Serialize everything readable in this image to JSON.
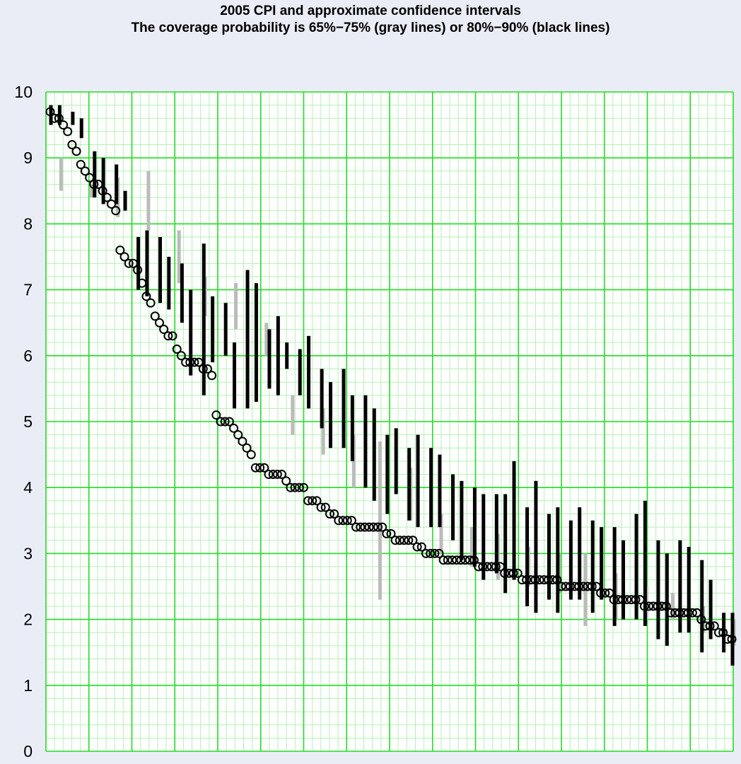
{
  "chart_data": {
    "type": "scatter",
    "title": "2005 CPI and approximate confidence intervals",
    "subtitle": "The coverage probability is 65%−75% (gray lines) or 80%−90% (black lines)",
    "xlabel": "",
    "ylabel": "",
    "ylim": [
      0,
      10
    ],
    "yticks": [
      "0",
      "1",
      "2",
      "3",
      "4",
      "5",
      "6",
      "7",
      "8",
      "9",
      "10"
    ],
    "grid": true,
    "colors": {
      "background": "#ebedf6",
      "plot_background": "#ffffff",
      "major_grid": "#22dd22",
      "minor_grid": "#b5f0b5",
      "point_stroke": "#000000",
      "interval_black": "#000000",
      "interval_gray": "#bbbbbb"
    },
    "points": [
      9.7,
      9.6,
      9.6,
      9.5,
      9.4,
      9.2,
      9.1,
      8.9,
      8.8,
      8.7,
      8.6,
      8.6,
      8.5,
      8.4,
      8.3,
      8.2,
      7.6,
      7.5,
      7.4,
      7.4,
      7.3,
      7.1,
      6.9,
      6.8,
      6.6,
      6.5,
      6.4,
      6.3,
      6.3,
      6.1,
      6.0,
      5.9,
      5.9,
      5.9,
      5.9,
      5.8,
      5.8,
      5.7,
      5.1,
      5.0,
      5.0,
      5.0,
      4.9,
      4.8,
      4.7,
      4.6,
      4.5,
      4.3,
      4.3,
      4.3,
      4.2,
      4.2,
      4.2,
      4.2,
      4.1,
      4.0,
      4.0,
      4.0,
      4.0,
      3.8,
      3.8,
      3.8,
      3.7,
      3.7,
      3.6,
      3.6,
      3.5,
      3.5,
      3.5,
      3.5,
      3.4,
      3.4,
      3.4,
      3.4,
      3.4,
      3.4,
      3.4,
      3.3,
      3.3,
      3.2,
      3.2,
      3.2,
      3.2,
      3.2,
      3.1,
      3.1,
      3.0,
      3.0,
      3.0,
      3.0,
      2.9,
      2.9,
      2.9,
      2.9,
      2.9,
      2.9,
      2.9,
      2.9,
      2.8,
      2.8,
      2.8,
      2.8,
      2.8,
      2.8,
      2.7,
      2.7,
      2.7,
      2.7,
      2.6,
      2.6,
      2.6,
      2.6,
      2.6,
      2.6,
      2.6,
      2.6,
      2.6,
      2.5,
      2.5,
      2.5,
      2.5,
      2.5,
      2.5,
      2.5,
      2.5,
      2.5,
      2.4,
      2.4,
      2.4,
      2.3,
      2.3,
      2.3,
      2.3,
      2.3,
      2.3,
      2.3,
      2.2,
      2.2,
      2.2,
      2.2,
      2.2,
      2.2,
      2.1,
      2.1,
      2.1,
      2.1,
      2.1,
      2.1,
      2.1,
      2.0,
      1.9,
      1.9,
      1.9,
      1.8,
      1.8,
      1.7,
      1.7
    ],
    "intervals_black": [
      [
        9.5,
        9.8
      ],
      [
        9.5,
        9.8
      ],
      [
        9.5,
        9.7
      ],
      [
        9.3,
        9.6
      ],
      [
        8.4,
        9.1
      ],
      [
        8.3,
        9.0
      ],
      [
        8.3,
        8.9
      ],
      [
        8.2,
        8.5
      ],
      [
        7.0,
        7.8
      ],
      [
        6.9,
        7.9
      ],
      [
        6.8,
        7.8
      ],
      [
        6.7,
        7.5
      ],
      [
        6.5,
        7.4
      ],
      [
        5.7,
        7.0
      ],
      [
        5.4,
        7.7
      ],
      [
        5.9,
        6.9
      ],
      [
        6.0,
        6.8
      ],
      [
        5.2,
        6.2
      ],
      [
        5.2,
        7.3
      ],
      [
        5.3,
        7.1
      ],
      [
        5.5,
        6.4
      ],
      [
        5.4,
        6.6
      ],
      [
        5.8,
        6.2
      ],
      [
        5.4,
        6.1
      ],
      [
        5.2,
        6.3
      ],
      [
        4.9,
        5.8
      ],
      [
        4.6,
        5.6
      ],
      [
        4.6,
        5.8
      ],
      [
        4.4,
        5.4
      ],
      [
        4.0,
        5.4
      ],
      [
        3.8,
        5.2
      ],
      [
        3.6,
        4.8
      ],
      [
        3.9,
        4.9
      ],
      [
        3.5,
        4.6
      ],
      [
        3.4,
        4.8
      ],
      [
        3.4,
        4.6
      ],
      [
        3.4,
        4.5
      ],
      [
        3.2,
        4.2
      ],
      [
        2.9,
        4.1
      ],
      [
        2.8,
        4.0
      ],
      [
        2.6,
        3.9
      ],
      [
        2.7,
        3.9
      ],
      [
        2.4,
        3.9
      ],
      [
        2.6,
        4.4
      ],
      [
        2.2,
        3.7
      ],
      [
        2.1,
        4.1
      ],
      [
        2.3,
        3.6
      ],
      [
        2.1,
        3.7
      ],
      [
        2.3,
        3.5
      ],
      [
        2.3,
        3.7
      ],
      [
        2.1,
        3.5
      ],
      [
        2.3,
        3.4
      ],
      [
        1.9,
        3.4
      ],
      [
        2.0,
        3.2
      ],
      [
        2.0,
        3.6
      ],
      [
        1.9,
        3.8
      ],
      [
        1.7,
        3.2
      ],
      [
        1.6,
        3.0
      ],
      [
        1.8,
        3.2
      ],
      [
        1.8,
        3.1
      ],
      [
        1.5,
        2.9
      ],
      [
        1.7,
        2.6
      ],
      [
        1.5,
        2.1
      ],
      [
        1.3,
        2.1
      ]
    ],
    "intervals_gray": [
      [
        9.0,
        8.5
      ],
      [
        8.6,
        8.4
      ],
      [
        8.7,
        8.1
      ],
      [
        8.8,
        7.9
      ],
      [
        7.9,
        7.1
      ],
      [
        7.2,
        6.6
      ],
      [
        7.1,
        6.4
      ],
      [
        6.5,
        6.0
      ],
      [
        5.4,
        4.8
      ],
      [
        5.2,
        4.5
      ],
      [
        4.8,
        4.0
      ],
      [
        4.7,
        2.3
      ],
      [
        4.3,
        3.5
      ],
      [
        3.6,
        3.0
      ],
      [
        3.4,
        2.8
      ],
      [
        3.3,
        2.6
      ],
      [
        3.1,
        2.5
      ],
      [
        3.0,
        2.4
      ],
      [
        3.0,
        1.9
      ],
      [
        2.7,
        2.0
      ],
      [
        2.5,
        2.0
      ],
      [
        2.4,
        2.0
      ],
      [
        2.2,
        1.8
      ],
      [
        2.0,
        1.6
      ]
    ]
  }
}
